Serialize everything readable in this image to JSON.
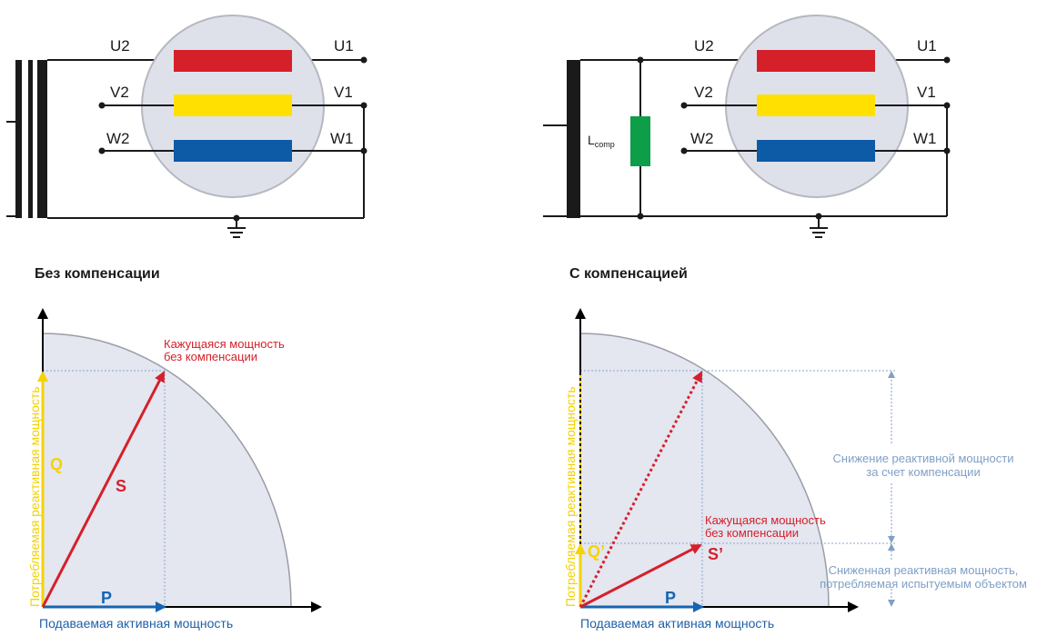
{
  "circuits": {
    "left": {
      "caption": "Без компенсации",
      "terminals": {
        "u2": "U2",
        "v2": "V2",
        "w2": "W2",
        "u1": "U1",
        "v1": "V1",
        "w1": "W1"
      }
    },
    "right": {
      "caption": "С компенсацией",
      "inductor_main": "L",
      "inductor_sub": "comp",
      "terminals": {
        "u2": "U2",
        "v2": "V2",
        "w2": "W2",
        "u1": "U1",
        "v1": "V1",
        "w1": "W1"
      }
    }
  },
  "phasors": {
    "left": {
      "x_axis": "Подаваемая активная мощность",
      "y_axis": "Потребляемая реактивная мощность",
      "p": "P",
      "q": "Q",
      "s": "S",
      "apparent_line1": "Кажущаяся мощность",
      "apparent_line2": "без компенсации"
    },
    "right": {
      "x_axis": "Подаваемая активная мощность",
      "y_axis": "Потребляемая реактивная мощность",
      "p": "P",
      "q": "Q’",
      "s": "S’",
      "apparent_line1": "Кажущаяся мощность",
      "apparent_line2": "без компенсации",
      "reduction_line1": "Снижение реактивной мощности",
      "reduction_line2": "за счет компенсации",
      "reduced_line1": "Сниженная реактивная мощность,",
      "reduced_line2": "потребляемая испытуемым объектом"
    }
  },
  "colors": {
    "phase_u": "#d5202a",
    "phase_v": "#ffe000",
    "phase_w": "#0d5aa7",
    "inductor": "#0e9d48",
    "disc": "#e4e6f0",
    "q_vector": "#f5d300",
    "p_vector": "#1565b0",
    "s_vector": "#d5202a"
  }
}
